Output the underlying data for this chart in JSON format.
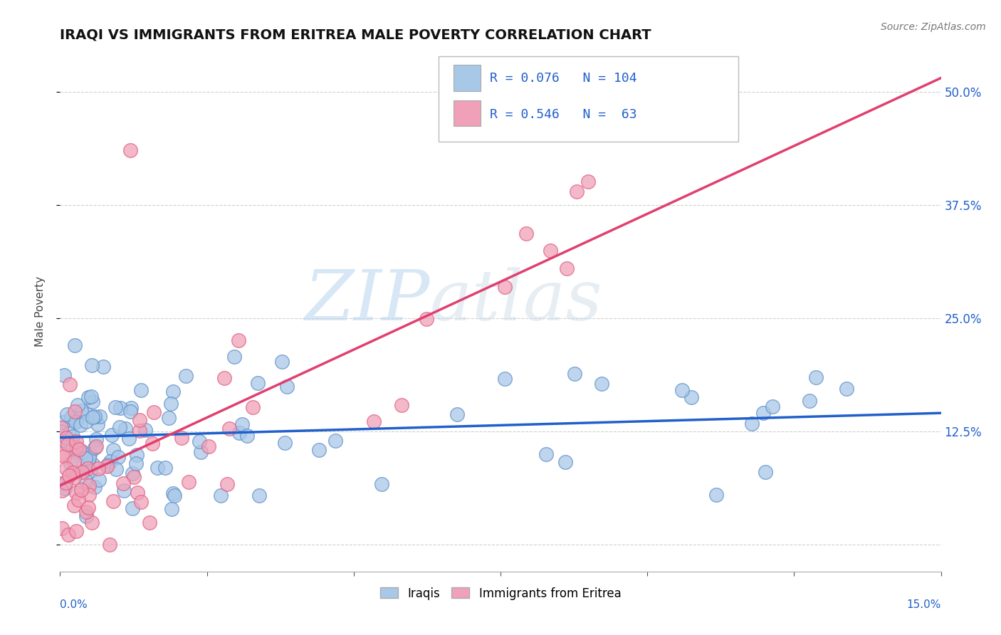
{
  "title": "IRAQI VS IMMIGRANTS FROM ERITREA MALE POVERTY CORRELATION CHART",
  "source": "Source: ZipAtlas.com",
  "ylabel": "Male Poverty",
  "x_min": 0.0,
  "x_max": 0.15,
  "y_min": -0.03,
  "y_max": 0.545,
  "yticks": [
    0.0,
    0.125,
    0.25,
    0.375,
    0.5
  ],
  "ytick_labels": [
    "",
    "12.5%",
    "25.0%",
    "37.5%",
    "50.0%"
  ],
  "xticks": [
    0.0,
    0.025,
    0.05,
    0.075,
    0.1,
    0.125,
    0.15
  ],
  "grid_color": "#d0d0d0",
  "blue_color": "#a8c8e8",
  "pink_color": "#f0a0b8",
  "blue_edge_color": "#6090c8",
  "pink_edge_color": "#e06080",
  "blue_line_color": "#2060cc",
  "pink_line_color": "#e04070",
  "R_blue": 0.076,
  "N_blue": 104,
  "R_pink": 0.546,
  "N_pink": 63,
  "watermark_zip": "ZIP",
  "watermark_atlas": "atlas",
  "legend_labels": [
    "Iraqis",
    "Immigrants from Eritrea"
  ],
  "blue_intercept": 0.118,
  "blue_slope": 0.18,
  "pink_intercept": 0.065,
  "pink_slope": 3.0
}
